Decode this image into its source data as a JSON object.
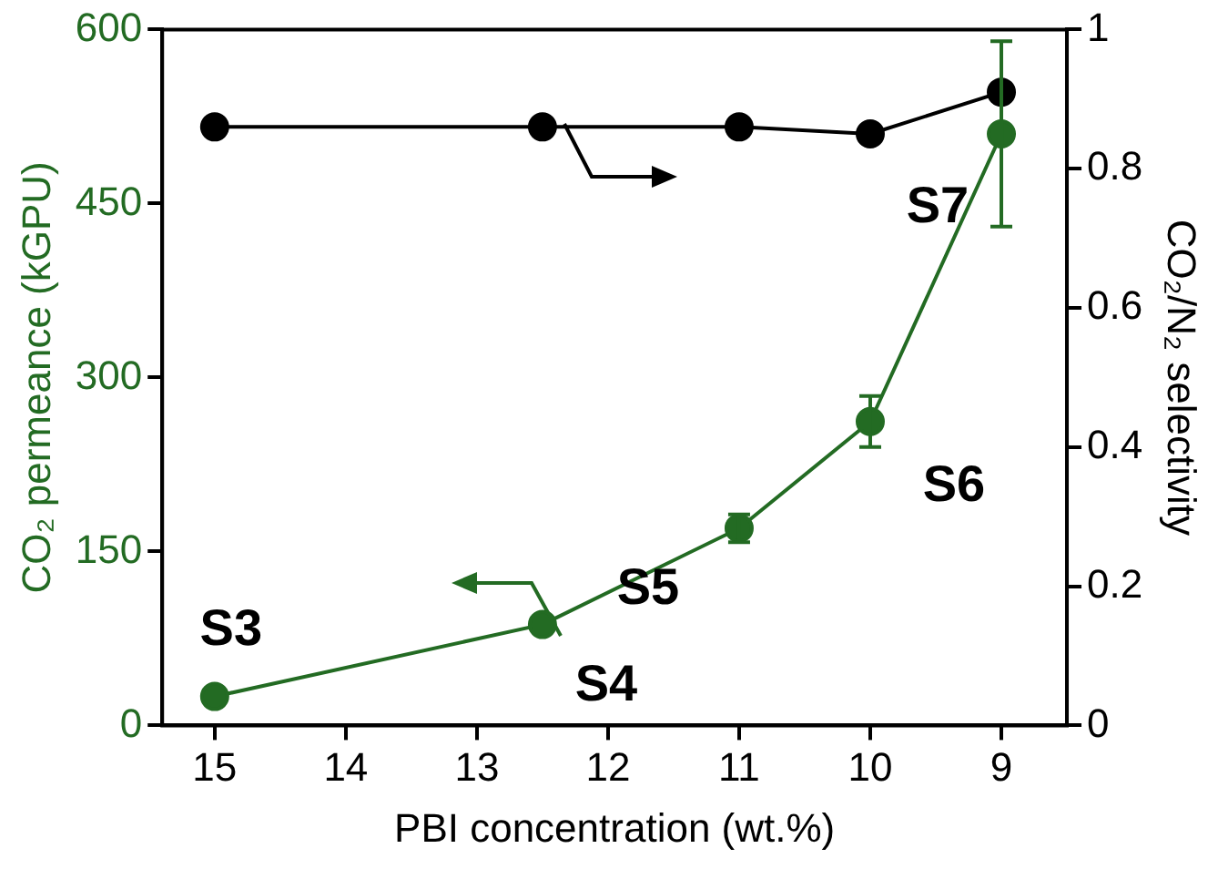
{
  "chart_data": {
    "type": "line",
    "xlabel": "PBI concentration (wt.%)",
    "ylabel": "CO₂ permeance (kGPU)",
    "y2label": "CO₂/N₂ selectivity",
    "x": [
      15,
      12.5,
      11,
      10,
      9
    ],
    "series": [
      {
        "color": "#236b23",
        "values": [
          25,
          87,
          170,
          262,
          510
        ],
        "errors": [
          null,
          null,
          12,
          22,
          80
        ]
      },
      {
        "axis": "y2",
        "color": "#000000",
        "values": [
          0.86,
          0.86,
          0.86,
          0.85,
          0.91
        ]
      }
    ],
    "xlim": [
      15.4,
      8.5
    ],
    "xticks": [
      15,
      14,
      13,
      12,
      11,
      10,
      9
    ],
    "ylim": [
      0,
      600
    ],
    "yticks": [
      0,
      150,
      300,
      450,
      600
    ],
    "y2lim": [
      0,
      1
    ],
    "y2ticks": [
      0,
      0.2,
      0.4,
      0.6,
      0.8,
      1
    ],
    "marker": "circle",
    "line_style": "solid",
    "grid": false,
    "legend": false,
    "annotations": [
      {
        "text": "S3",
        "x": 15,
        "y": 25
      },
      {
        "text": "S4",
        "x": 12.5,
        "y": 87
      },
      {
        "text": "S5",
        "x": 11,
        "y": 170
      },
      {
        "text": "S6",
        "x": 10,
        "y": 262
      },
      {
        "text": "S7",
        "x": 9,
        "y": 510
      }
    ]
  }
}
